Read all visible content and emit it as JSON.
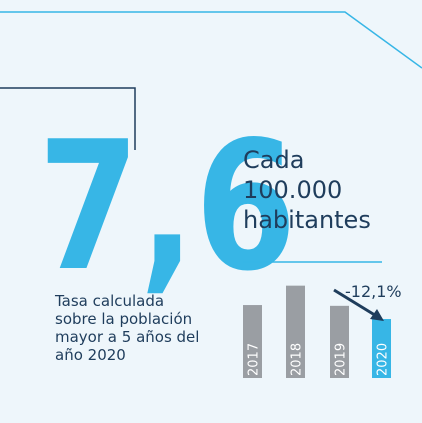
{
  "chart_data": {
    "type": "bar",
    "big_number": "7,6",
    "headline": [
      "Cada",
      "100.000",
      "habitantes"
    ],
    "description": [
      "Tasa calculada",
      "sobre la población",
      "mayor a 5 años del",
      "año 2020"
    ],
    "annotation": "-12,1%",
    "categories": [
      "2017",
      "2018",
      "2019",
      "2020"
    ],
    "values": [
      9.4,
      11.9,
      9.3,
      7.6
    ],
    "colors": [
      "#9a9ea3",
      "#9a9ea3",
      "#9a9ea3",
      "#37b6e6"
    ]
  }
}
